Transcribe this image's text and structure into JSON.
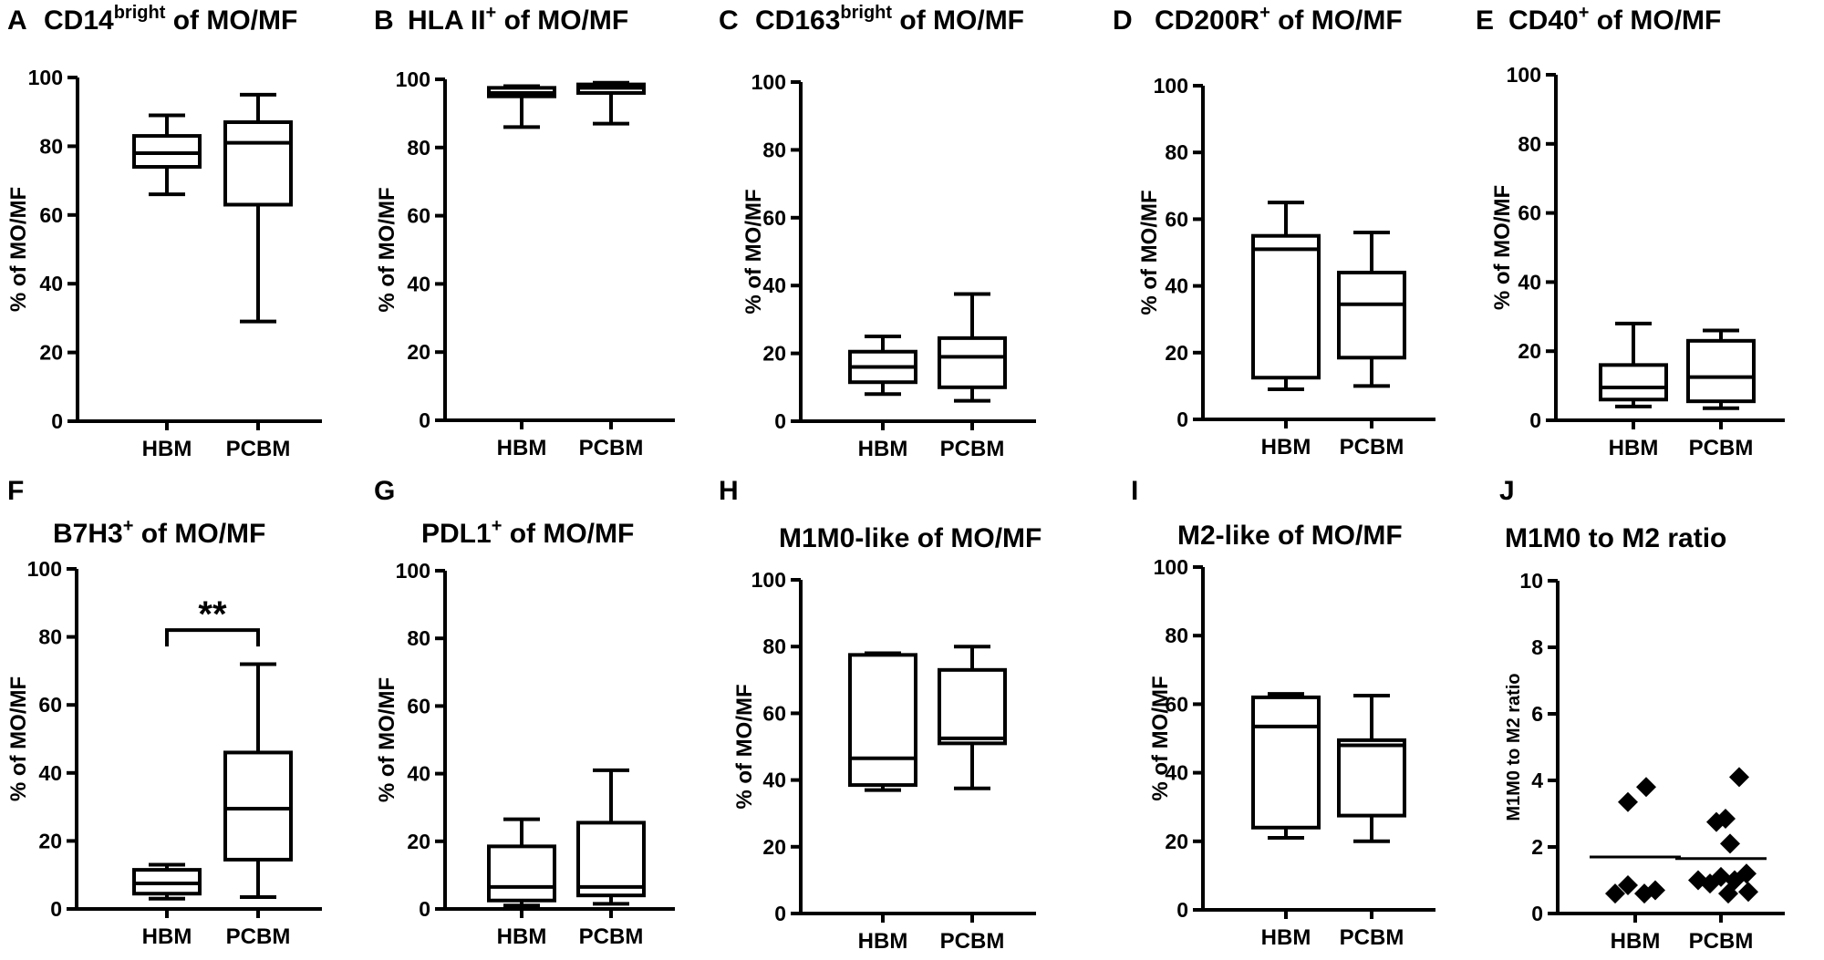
{
  "figure": {
    "background": "#ffffff",
    "ink": "#000000"
  },
  "chart_data": [
    {
      "panel": "A",
      "type": "box",
      "title": "CD14",
      "title_sup": "bright",
      "title_rest": " of MO/MF",
      "ylabel": "% of MO/MF",
      "ylim": [
        0,
        100
      ],
      "yticks": [
        0,
        20,
        40,
        60,
        80,
        100
      ],
      "categories": [
        "HBM",
        "PCBM"
      ],
      "boxes": [
        {
          "category": "HBM",
          "min": 66,
          "q1": 74,
          "median": 78,
          "q3": 83,
          "max": 89
        },
        {
          "category": "PCBM",
          "min": 29,
          "q1": 63,
          "median": 81,
          "q3": 87,
          "max": 95
        }
      ]
    },
    {
      "panel": "B",
      "type": "box",
      "title": "HLA II",
      "title_sup": "+",
      "title_rest": " of MO/MF",
      "ylabel": "% of MO/MF",
      "ylim": [
        0,
        100
      ],
      "yticks": [
        0,
        20,
        40,
        60,
        80,
        100
      ],
      "categories": [
        "HBM",
        "PCBM"
      ],
      "boxes": [
        {
          "category": "HBM",
          "min": 86,
          "q1": 95,
          "median": 96,
          "q3": 97.5,
          "max": 98
        },
        {
          "category": "PCBM",
          "min": 87,
          "q1": 96,
          "median": 97.5,
          "q3": 98.5,
          "max": 99
        }
      ]
    },
    {
      "panel": "C",
      "type": "box",
      "title": "CD163",
      "title_sup": "bright",
      "title_rest": " of MO/MF",
      "ylabel": "% of MO/MF",
      "ylim": [
        0,
        100
      ],
      "yticks": [
        0,
        20,
        40,
        60,
        80,
        100
      ],
      "categories": [
        "HBM",
        "PCBM"
      ],
      "boxes": [
        {
          "category": "HBM",
          "min": 8,
          "q1": 11.5,
          "median": 16,
          "q3": 20.5,
          "max": 25
        },
        {
          "category": "PCBM",
          "min": 6,
          "q1": 10,
          "median": 19,
          "q3": 24.5,
          "max": 37.5
        }
      ]
    },
    {
      "panel": "D",
      "type": "box",
      "title": "CD200R",
      "title_sup": "+",
      "title_rest": " of MO/MF",
      "ylabel": "% of MO/MF",
      "ylim": [
        0,
        100
      ],
      "yticks": [
        0,
        20,
        40,
        60,
        80,
        100
      ],
      "categories": [
        "HBM",
        "PCBM"
      ],
      "boxes": [
        {
          "category": "HBM",
          "min": 9,
          "q1": 12.5,
          "median": 51,
          "q3": 55,
          "max": 65
        },
        {
          "category": "PCBM",
          "min": 10,
          "q1": 18.5,
          "median": 34.5,
          "q3": 44,
          "max": 56
        }
      ]
    },
    {
      "panel": "E",
      "type": "box",
      "title": "CD40",
      "title_sup": "+",
      "title_rest": " of MO/MF",
      "ylabel": "% of MO/MF",
      "ylim": [
        0,
        100
      ],
      "yticks": [
        0,
        20,
        40,
        60,
        80,
        100
      ],
      "categories": [
        "HBM",
        "PCBM"
      ],
      "boxes": [
        {
          "category": "HBM",
          "min": 4,
          "q1": 6,
          "median": 9.5,
          "q3": 16,
          "max": 28
        },
        {
          "category": "PCBM",
          "min": 3.5,
          "q1": 5.5,
          "median": 12.5,
          "q3": 23,
          "max": 26
        }
      ]
    },
    {
      "panel": "F",
      "type": "box",
      "title": "B7H3",
      "title_sup": "+",
      "title_rest": " of MO/MF",
      "ylabel": "% of MO/MF",
      "ylim": [
        0,
        100
      ],
      "yticks": [
        0,
        20,
        40,
        60,
        80,
        100
      ],
      "categories": [
        "HBM",
        "PCBM"
      ],
      "boxes": [
        {
          "category": "HBM",
          "min": 3,
          "q1": 4.5,
          "median": 7.5,
          "q3": 11.5,
          "max": 13
        },
        {
          "category": "PCBM",
          "min": 3.5,
          "q1": 14.5,
          "median": 29.5,
          "q3": 46,
          "max": 72
        }
      ],
      "annotation": {
        "text": "**",
        "bracket_y": 82
      }
    },
    {
      "panel": "G",
      "type": "box",
      "title": "PDL1",
      "title_sup": "+",
      "title_rest": " of MO/MF",
      "ylabel": "% of MO/MF",
      "ylim": [
        0,
        100
      ],
      "yticks": [
        0,
        20,
        40,
        60,
        80,
        100
      ],
      "categories": [
        "HBM",
        "PCBM"
      ],
      "boxes": [
        {
          "category": "HBM",
          "min": 1,
          "q1": 2.5,
          "median": 6.5,
          "q3": 18.5,
          "max": 26.5
        },
        {
          "category": "PCBM",
          "min": 1.5,
          "q1": 4,
          "median": 6.5,
          "q3": 25.5,
          "max": 41
        }
      ]
    },
    {
      "panel": "H",
      "type": "box",
      "title": "M1M0-like of MO/MF",
      "title_sup": "",
      "title_rest": "",
      "ylabel": "% of MO/MF",
      "ylim": [
        0,
        100
      ],
      "yticks": [
        0,
        20,
        40,
        60,
        80,
        100
      ],
      "categories": [
        "HBM",
        "PCBM"
      ],
      "boxes": [
        {
          "category": "HBM",
          "min": 37,
          "q1": 38.5,
          "median": 46.5,
          "q3": 77.5,
          "max": 78
        },
        {
          "category": "PCBM",
          "min": 37.5,
          "q1": 51,
          "median": 52.5,
          "q3": 73,
          "max": 80
        }
      ]
    },
    {
      "panel": "I",
      "type": "box",
      "title": "M2-like of MO/MF",
      "title_sup": "",
      "title_rest": "",
      "ylabel": "% of MO/MF",
      "ylim": [
        0,
        100
      ],
      "yticks": [
        0,
        20,
        40,
        60,
        80,
        100
      ],
      "categories": [
        "HBM",
        "PCBM"
      ],
      "boxes": [
        {
          "category": "HBM",
          "min": 21,
          "q1": 24,
          "median": 53.5,
          "q3": 62,
          "max": 63
        },
        {
          "category": "PCBM",
          "min": 20,
          "q1": 27.5,
          "median": 48,
          "q3": 49.5,
          "max": 62.5
        }
      ]
    },
    {
      "panel": "J",
      "type": "scatter",
      "title": "M1M0 to M2 ratio",
      "title_sup": "",
      "title_rest": "",
      "ylabel": "M1M0 to M2 ratio",
      "ylim": [
        0,
        10
      ],
      "yticks": [
        0,
        2,
        4,
        6,
        8,
        10
      ],
      "categories": [
        "HBM",
        "PCBM"
      ],
      "groups": [
        {
          "category": "HBM",
          "mean": 1.7,
          "points": [
            {
              "offset": -0.22,
              "y": 0.6
            },
            {
              "offset": -0.08,
              "y": 0.85
            },
            {
              "offset": 0.1,
              "y": 0.6
            },
            {
              "offset": 0.22,
              "y": 0.7
            },
            {
              "offset": -0.08,
              "y": 3.35
            },
            {
              "offset": 0.12,
              "y": 3.8
            }
          ]
        },
        {
          "category": "PCBM",
          "mean": 1.65,
          "points": [
            {
              "offset": 0.2,
              "y": 4.1
            },
            {
              "offset": -0.05,
              "y": 2.75
            },
            {
              "offset": 0.05,
              "y": 2.85
            },
            {
              "offset": 0.1,
              "y": 2.1
            },
            {
              "offset": -0.25,
              "y": 1.0
            },
            {
              "offset": -0.12,
              "y": 0.9
            },
            {
              "offset": 0.0,
              "y": 1.1
            },
            {
              "offset": 0.15,
              "y": 1.0
            },
            {
              "offset": 0.28,
              "y": 1.2
            },
            {
              "offset": 0.08,
              "y": 0.6
            },
            {
              "offset": 0.3,
              "y": 0.65
            }
          ]
        }
      ]
    }
  ]
}
